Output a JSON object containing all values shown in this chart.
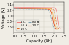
{
  "title": "",
  "xlabel": "Capacity (Ah)",
  "ylabel": "Voltage (V)",
  "xlim": [
    0.0,
    2.5
  ],
  "ylim": [
    2.4,
    3.5
  ],
  "yticks": [
    2.6,
    2.8,
    3.0,
    3.2,
    3.4
  ],
  "xticks": [
    0.0,
    0.5,
    1.0,
    1.5,
    2.0,
    2.5
  ],
  "background_color": "#f0ede5",
  "curves": [
    {
      "label": "1 C",
      "color": "#f08080",
      "linestyle": "-",
      "cap_max": 2.32,
      "v_flat": 3.33,
      "v_drop": 2.18,
      "sharpness": 30,
      "v_min": 2.55
    },
    {
      "label": "50 A",
      "color": "#f5c060",
      "linestyle": "-",
      "cap_max": 2.18,
      "v_flat": 3.3,
      "v_drop": 2.0,
      "sharpness": 22,
      "v_min": 2.52
    },
    {
      "label": "10 C",
      "color": "#e07030",
      "linestyle": "--",
      "cap_max": 2.24,
      "v_flat": 3.3,
      "v_drop": 2.08,
      "sharpness": 26,
      "v_min": 2.53
    },
    {
      "label": "80 A",
      "color": "#80a0b0",
      "linestyle": "--",
      "cap_max": 2.05,
      "v_flat": 3.27,
      "v_drop": 1.88,
      "sharpness": 18,
      "v_min": 2.5
    },
    {
      "label": "20 C",
      "color": "#e04010",
      "linestyle": "-",
      "cap_max": 2.1,
      "v_flat": 3.28,
      "v_drop": 1.95,
      "sharpness": 20,
      "v_min": 2.5
    }
  ],
  "grid_color": "#d0cdc0",
  "tick_labelsize": 3.5,
  "label_fontsize": 4.0,
  "legend_fontsize": 3.0
}
